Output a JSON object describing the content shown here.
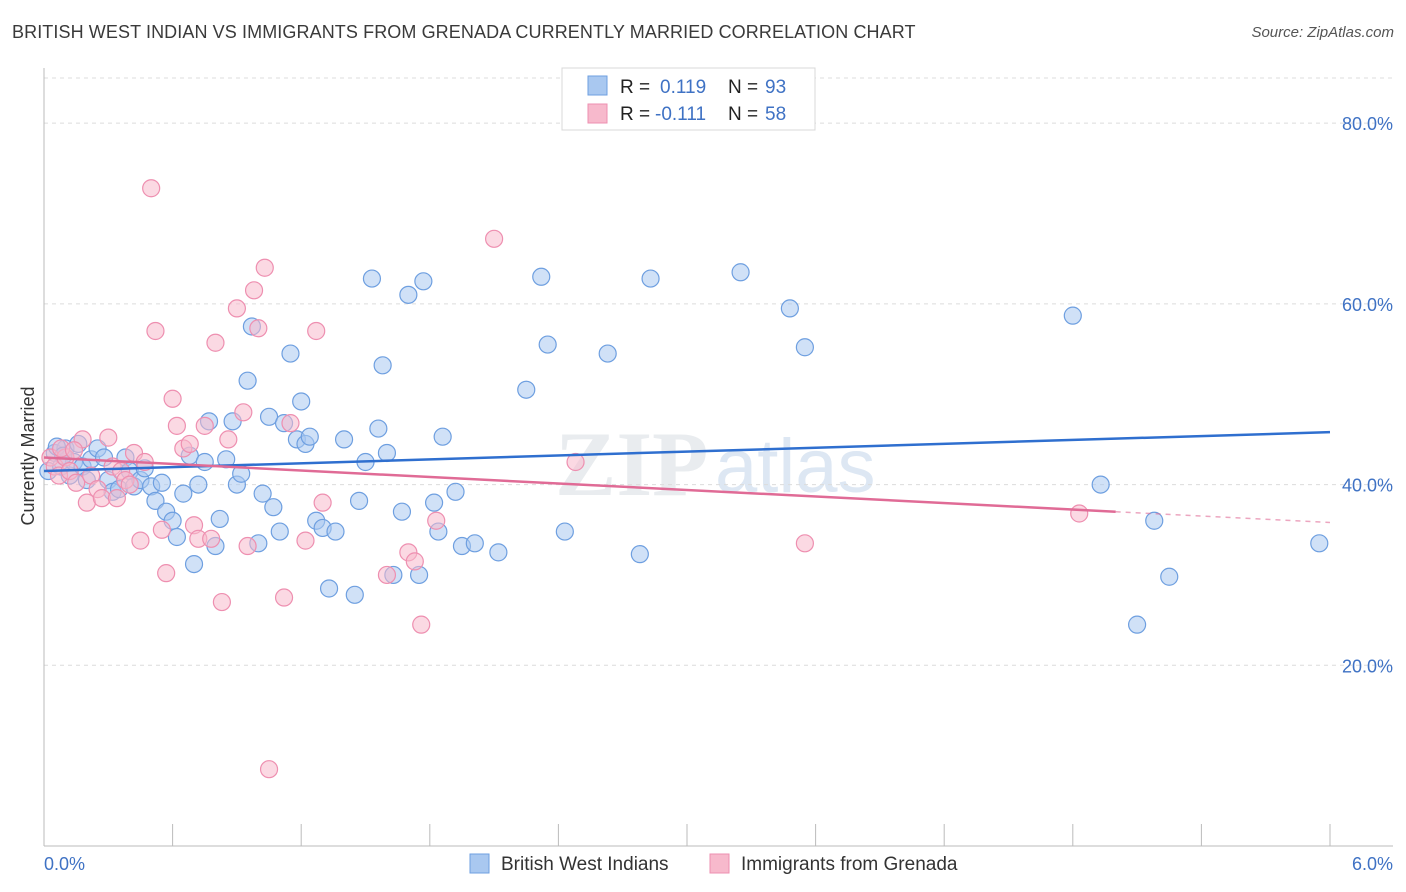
{
  "title": "BRITISH WEST INDIAN VS IMMIGRANTS FROM GRENADA CURRENTLY MARRIED CORRELATION CHART",
  "source": "Source: ZipAtlas.com",
  "watermark": {
    "zip": "ZIP",
    "atlas": "atlas"
  },
  "legend": {
    "rows": [
      {
        "r_label": "R =",
        "r_value": "0.119",
        "n_label": "N =",
        "n_value": "93"
      },
      {
        "r_label": "R =",
        "r_value": "-0.111",
        "n_label": "N =",
        "n_value": "58"
      }
    ]
  },
  "colors": {
    "blue_fill": "#a9c8f0",
    "blue_stroke": "#6e9fe0",
    "blue_line": "#2f6fcf",
    "pink_fill": "#f7b9cc",
    "pink_stroke": "#ee8fb0",
    "pink_line": "#e06b96",
    "tick_text": "#3f72c4"
  },
  "chart_data": {
    "type": "scatter",
    "ylabel": "Currently Married",
    "xlim": [
      0,
      6.0
    ],
    "ylim": [
      0,
      85
    ],
    "x_tick_labels": [
      "0.0%",
      "6.0%"
    ],
    "y_ticks": [
      20,
      40,
      60,
      80
    ],
    "y_tick_labels": [
      "20.0%",
      "40.0%",
      "60.0%",
      "80.0%"
    ],
    "grid": "horizontal dashed",
    "series": [
      {
        "name": "British West Indians",
        "color": "#a9c8f0",
        "trend": {
          "x": [
            0,
            6.0
          ],
          "y": [
            41.5,
            45.8
          ]
        },
        "points": [
          [
            0.02,
            41.5
          ],
          [
            0.05,
            43.5
          ],
          [
            0.08,
            42.0
          ],
          [
            0.1,
            44.0
          ],
          [
            0.12,
            41.0
          ],
          [
            0.14,
            42.5
          ],
          [
            0.16,
            44.5
          ],
          [
            0.18,
            42.0
          ],
          [
            0.2,
            40.5
          ],
          [
            0.22,
            42.8
          ],
          [
            0.25,
            44.0
          ],
          [
            0.28,
            43.0
          ],
          [
            0.3,
            40.5
          ],
          [
            0.32,
            39.2
          ],
          [
            0.35,
            39.5
          ],
          [
            0.38,
            43.0
          ],
          [
            0.4,
            41.5
          ],
          [
            0.42,
            39.8
          ],
          [
            0.45,
            40.5
          ],
          [
            0.47,
            41.8
          ],
          [
            0.5,
            39.8
          ],
          [
            0.52,
            38.2
          ],
          [
            0.55,
            40.2
          ],
          [
            0.57,
            37.0
          ],
          [
            0.6,
            36.0
          ],
          [
            0.62,
            34.2
          ],
          [
            0.65,
            39.0
          ],
          [
            0.68,
            43.2
          ],
          [
            0.7,
            31.2
          ],
          [
            0.72,
            40.0
          ],
          [
            0.75,
            42.5
          ],
          [
            0.77,
            47.0
          ],
          [
            0.8,
            33.2
          ],
          [
            0.82,
            36.2
          ],
          [
            0.85,
            42.8
          ],
          [
            0.88,
            47.0
          ],
          [
            0.9,
            40.0
          ],
          [
            0.92,
            41.2
          ],
          [
            0.95,
            51.5
          ],
          [
            0.97,
            57.5
          ],
          [
            1.0,
            33.5
          ],
          [
            1.02,
            39.0
          ],
          [
            1.05,
            47.5
          ],
          [
            1.07,
            37.5
          ],
          [
            1.1,
            34.8
          ],
          [
            1.12,
            46.8
          ],
          [
            1.15,
            54.5
          ],
          [
            1.18,
            45.0
          ],
          [
            1.2,
            49.2
          ],
          [
            1.22,
            44.5
          ],
          [
            1.24,
            45.3
          ],
          [
            1.27,
            36.0
          ],
          [
            1.3,
            35.2
          ],
          [
            1.33,
            28.5
          ],
          [
            1.36,
            34.8
          ],
          [
            1.4,
            45.0
          ],
          [
            1.45,
            27.8
          ],
          [
            1.47,
            38.2
          ],
          [
            1.5,
            42.5
          ],
          [
            1.53,
            62.8
          ],
          [
            1.56,
            46.2
          ],
          [
            1.58,
            53.2
          ],
          [
            1.6,
            43.5
          ],
          [
            1.63,
            30.0
          ],
          [
            1.67,
            37.0
          ],
          [
            1.7,
            61.0
          ],
          [
            1.75,
            30.0
          ],
          [
            1.77,
            62.5
          ],
          [
            1.82,
            38.0
          ],
          [
            1.84,
            34.8
          ],
          [
            1.86,
            45.3
          ],
          [
            1.92,
            39.2
          ],
          [
            1.95,
            33.2
          ],
          [
            2.01,
            33.5
          ],
          [
            2.12,
            32.5
          ],
          [
            2.25,
            50.5
          ],
          [
            2.32,
            63.0
          ],
          [
            2.35,
            55.5
          ],
          [
            2.43,
            34.8
          ],
          [
            2.63,
            54.5
          ],
          [
            2.78,
            32.3
          ],
          [
            2.83,
            62.8
          ],
          [
            3.25,
            63.5
          ],
          [
            3.48,
            59.5
          ],
          [
            3.55,
            55.2
          ],
          [
            4.8,
            58.7
          ],
          [
            4.93,
            40.0
          ],
          [
            5.1,
            24.5
          ],
          [
            5.18,
            36.0
          ],
          [
            5.25,
            29.8
          ],
          [
            5.95,
            33.5
          ],
          [
            0.06,
            44.2
          ],
          [
            0.09,
            43.2
          ]
        ]
      },
      {
        "name": "Immigrants from Grenada",
        "color": "#f7b9cc",
        "trend": {
          "x": [
            0,
            5.0
          ],
          "y": [
            43.0,
            37.0
          ]
        },
        "trend_dashed": {
          "x": [
            5.0,
            6.0
          ],
          "y": [
            37.0,
            35.8
          ]
        },
        "points": [
          [
            0.03,
            43.0
          ],
          [
            0.05,
            42.0
          ],
          [
            0.07,
            41.0
          ],
          [
            0.1,
            43.0
          ],
          [
            0.12,
            41.5
          ],
          [
            0.15,
            40.2
          ],
          [
            0.18,
            45.0
          ],
          [
            0.2,
            38.0
          ],
          [
            0.22,
            41.0
          ],
          [
            0.25,
            39.5
          ],
          [
            0.27,
            38.5
          ],
          [
            0.3,
            45.2
          ],
          [
            0.32,
            42.0
          ],
          [
            0.34,
            38.5
          ],
          [
            0.36,
            41.5
          ],
          [
            0.38,
            40.5
          ],
          [
            0.4,
            40.0
          ],
          [
            0.42,
            43.5
          ],
          [
            0.45,
            33.8
          ],
          [
            0.47,
            42.5
          ],
          [
            0.5,
            72.8
          ],
          [
            0.52,
            57.0
          ],
          [
            0.55,
            35.0
          ],
          [
            0.57,
            30.2
          ],
          [
            0.6,
            49.5
          ],
          [
            0.62,
            46.5
          ],
          [
            0.65,
            44.0
          ],
          [
            0.68,
            44.5
          ],
          [
            0.7,
            35.5
          ],
          [
            0.72,
            34.0
          ],
          [
            0.75,
            46.5
          ],
          [
            0.78,
            34.0
          ],
          [
            0.8,
            55.7
          ],
          [
            0.83,
            27.0
          ],
          [
            0.86,
            45.0
          ],
          [
            0.9,
            59.5
          ],
          [
            0.93,
            48.0
          ],
          [
            0.95,
            33.2
          ],
          [
            0.98,
            61.5
          ],
          [
            1.0,
            57.3
          ],
          [
            1.03,
            64.0
          ],
          [
            1.05,
            8.5
          ],
          [
            1.12,
            27.5
          ],
          [
            1.15,
            46.8
          ],
          [
            1.22,
            33.8
          ],
          [
            1.27,
            57.0
          ],
          [
            1.3,
            38.0
          ],
          [
            1.6,
            30.0
          ],
          [
            1.7,
            32.5
          ],
          [
            1.73,
            31.5
          ],
          [
            1.76,
            24.5
          ],
          [
            1.83,
            36.0
          ],
          [
            2.1,
            67.2
          ],
          [
            2.48,
            42.5
          ],
          [
            3.55,
            33.5
          ],
          [
            4.83,
            36.8
          ],
          [
            0.08,
            44.0
          ],
          [
            0.14,
            43.8
          ]
        ]
      }
    ]
  }
}
